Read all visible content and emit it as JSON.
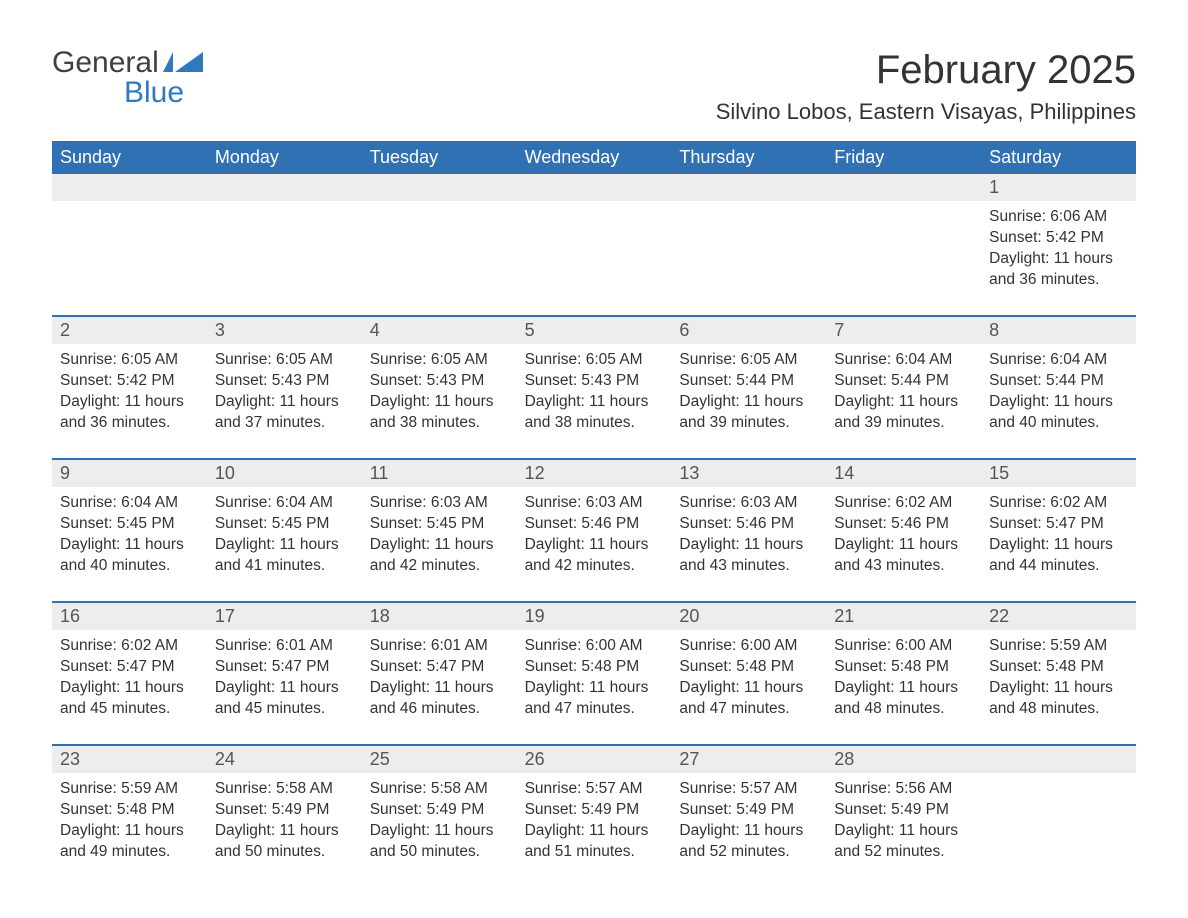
{
  "brand": {
    "top": "General",
    "bottom": "Blue",
    "flag_color": "#2f7abf"
  },
  "title": "February 2025",
  "location": "Silvino Lobos, Eastern Visayas, Philippines",
  "colors": {
    "header_bg": "#3071b4",
    "header_text": "#ffffff",
    "daynum_bg": "#eceded",
    "text": "#333333",
    "rule": "#3071b4",
    "background": "#ffffff"
  },
  "day_labels": [
    "Sunday",
    "Monday",
    "Tuesday",
    "Wednesday",
    "Thursday",
    "Friday",
    "Saturday"
  ],
  "weeks": [
    [
      null,
      null,
      null,
      null,
      null,
      null,
      {
        "n": "1",
        "sunrise": "6:06 AM",
        "sunset": "5:42 PM",
        "daylight": "11 hours and 36 minutes."
      }
    ],
    [
      {
        "n": "2",
        "sunrise": "6:05 AM",
        "sunset": "5:42 PM",
        "daylight": "11 hours and 36 minutes."
      },
      {
        "n": "3",
        "sunrise": "6:05 AM",
        "sunset": "5:43 PM",
        "daylight": "11 hours and 37 minutes."
      },
      {
        "n": "4",
        "sunrise": "6:05 AM",
        "sunset": "5:43 PM",
        "daylight": "11 hours and 38 minutes."
      },
      {
        "n": "5",
        "sunrise": "6:05 AM",
        "sunset": "5:43 PM",
        "daylight": "11 hours and 38 minutes."
      },
      {
        "n": "6",
        "sunrise": "6:05 AM",
        "sunset": "5:44 PM",
        "daylight": "11 hours and 39 minutes."
      },
      {
        "n": "7",
        "sunrise": "6:04 AM",
        "sunset": "5:44 PM",
        "daylight": "11 hours and 39 minutes."
      },
      {
        "n": "8",
        "sunrise": "6:04 AM",
        "sunset": "5:44 PM",
        "daylight": "11 hours and 40 minutes."
      }
    ],
    [
      {
        "n": "9",
        "sunrise": "6:04 AM",
        "sunset": "5:45 PM",
        "daylight": "11 hours and 40 minutes."
      },
      {
        "n": "10",
        "sunrise": "6:04 AM",
        "sunset": "5:45 PM",
        "daylight": "11 hours and 41 minutes."
      },
      {
        "n": "11",
        "sunrise": "6:03 AM",
        "sunset": "5:45 PM",
        "daylight": "11 hours and 42 minutes."
      },
      {
        "n": "12",
        "sunrise": "6:03 AM",
        "sunset": "5:46 PM",
        "daylight": "11 hours and 42 minutes."
      },
      {
        "n": "13",
        "sunrise": "6:03 AM",
        "sunset": "5:46 PM",
        "daylight": "11 hours and 43 minutes."
      },
      {
        "n": "14",
        "sunrise": "6:02 AM",
        "sunset": "5:46 PM",
        "daylight": "11 hours and 43 minutes."
      },
      {
        "n": "15",
        "sunrise": "6:02 AM",
        "sunset": "5:47 PM",
        "daylight": "11 hours and 44 minutes."
      }
    ],
    [
      {
        "n": "16",
        "sunrise": "6:02 AM",
        "sunset": "5:47 PM",
        "daylight": "11 hours and 45 minutes."
      },
      {
        "n": "17",
        "sunrise": "6:01 AM",
        "sunset": "5:47 PM",
        "daylight": "11 hours and 45 minutes."
      },
      {
        "n": "18",
        "sunrise": "6:01 AM",
        "sunset": "5:47 PM",
        "daylight": "11 hours and 46 minutes."
      },
      {
        "n": "19",
        "sunrise": "6:00 AM",
        "sunset": "5:48 PM",
        "daylight": "11 hours and 47 minutes."
      },
      {
        "n": "20",
        "sunrise": "6:00 AM",
        "sunset": "5:48 PM",
        "daylight": "11 hours and 47 minutes."
      },
      {
        "n": "21",
        "sunrise": "6:00 AM",
        "sunset": "5:48 PM",
        "daylight": "11 hours and 48 minutes."
      },
      {
        "n": "22",
        "sunrise": "5:59 AM",
        "sunset": "5:48 PM",
        "daylight": "11 hours and 48 minutes."
      }
    ],
    [
      {
        "n": "23",
        "sunrise": "5:59 AM",
        "sunset": "5:48 PM",
        "daylight": "11 hours and 49 minutes."
      },
      {
        "n": "24",
        "sunrise": "5:58 AM",
        "sunset": "5:49 PM",
        "daylight": "11 hours and 50 minutes."
      },
      {
        "n": "25",
        "sunrise": "5:58 AM",
        "sunset": "5:49 PM",
        "daylight": "11 hours and 50 minutes."
      },
      {
        "n": "26",
        "sunrise": "5:57 AM",
        "sunset": "5:49 PM",
        "daylight": "11 hours and 51 minutes."
      },
      {
        "n": "27",
        "sunrise": "5:57 AM",
        "sunset": "5:49 PM",
        "daylight": "11 hours and 52 minutes."
      },
      {
        "n": "28",
        "sunrise": "5:56 AM",
        "sunset": "5:49 PM",
        "daylight": "11 hours and 52 minutes."
      },
      null
    ]
  ],
  "labels": {
    "sunrise": "Sunrise: ",
    "sunset": "Sunset: ",
    "daylight": "Daylight: "
  }
}
